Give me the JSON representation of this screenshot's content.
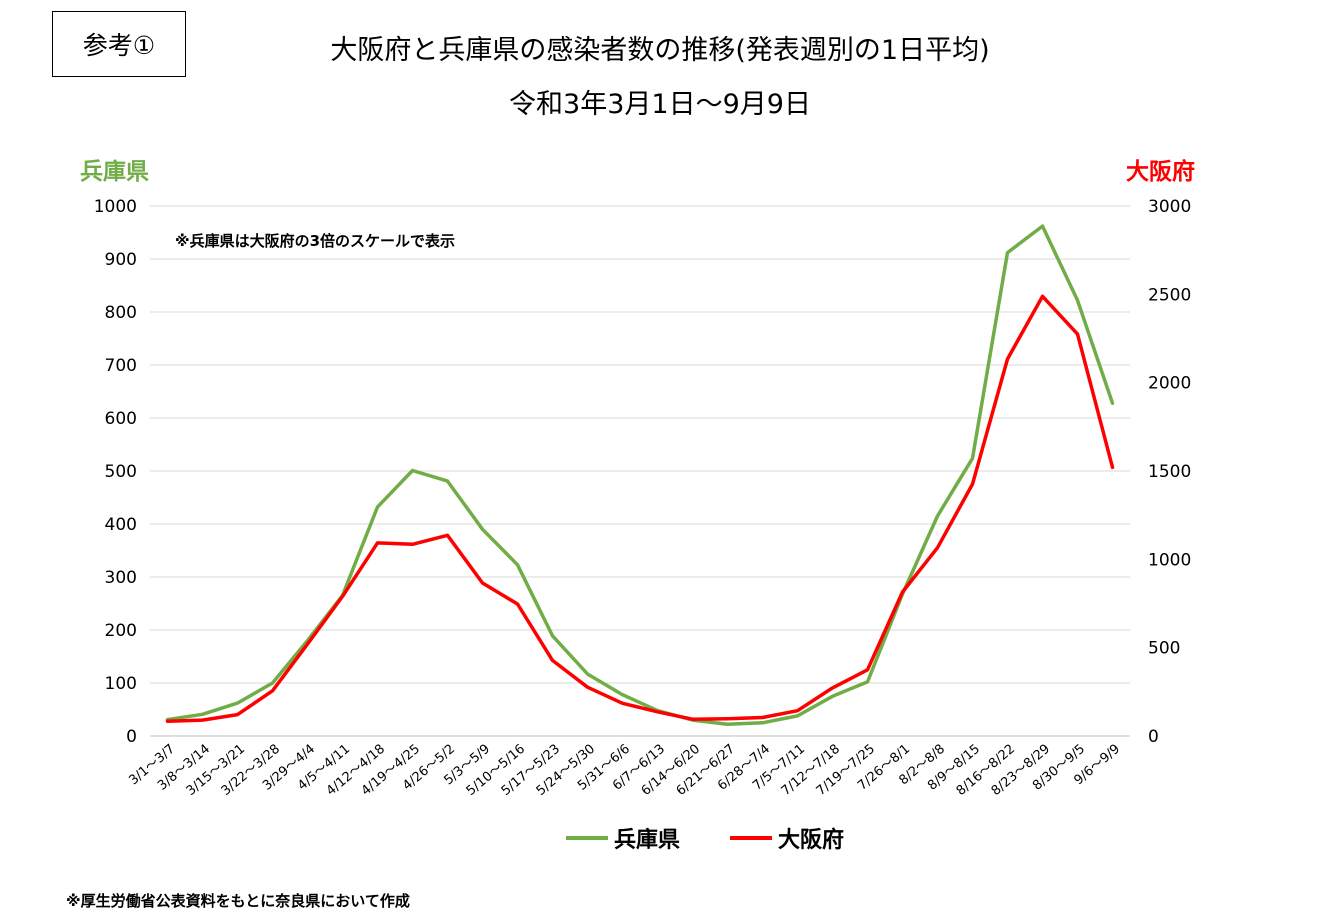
{
  "header": {
    "ref_label": "参考①",
    "title_line1": "大阪府と兵庫県の感染者数の推移(発表週別の1日平均)",
    "title_line2": "令和3年3月1日～9月9日"
  },
  "note": "※兵庫県は大阪府の3倍のスケールで表示",
  "source": "※厚生労働省公表資料をもとに奈良県において作成",
  "colors": {
    "hyogo": "#70ad47",
    "osaka": "#ff0000",
    "grid": "#d9d9d9"
  },
  "chart_data": {
    "type": "line",
    "left_axis_title": "兵庫県",
    "right_axis_title": "大阪府",
    "ylim_left": [
      0,
      1000
    ],
    "ylim_right": [
      0,
      3000
    ],
    "yticks_left": [
      "0",
      "100",
      "200",
      "300",
      "400",
      "500",
      "600",
      "700",
      "800",
      "900",
      "1000"
    ],
    "yticks_right": [
      "0",
      "500",
      "1000",
      "1500",
      "2000",
      "2500",
      "3000"
    ],
    "grid": true,
    "legend_position": "bottom",
    "categories": [
      "3/1～3/7",
      "3/8～3/14",
      "3/15～3/21",
      "3/22～3/28",
      "3/29～4/4",
      "4/5～4/11",
      "4/12～4/18",
      "4/19～4/25",
      "4/26～5/2",
      "5/3～5/9",
      "5/10～5/16",
      "5/17～5/23",
      "5/24～5/30",
      "5/31～6/6",
      "6/7～6/13",
      "6/14～6/20",
      "6/21～6/27",
      "6/28～7/4",
      "7/5～7/11",
      "7/12～7/18",
      "7/19～7/25",
      "7/26～8/1",
      "8/2～8/8",
      "8/9～8/15",
      "8/16～8/22",
      "8/23～8/29",
      "8/30～9/5",
      "9/6～9/9"
    ],
    "series": [
      {
        "name": "兵庫県",
        "axis": "left",
        "values": [
          31,
          41,
          62,
          100,
          180,
          265,
          432,
          501,
          481,
          390,
          323,
          189,
          117,
          78,
          48,
          30,
          22,
          25,
          38,
          75,
          102,
          268,
          415,
          524,
          912,
          962,
          822,
          628
        ]
      },
      {
        "name": "大阪府",
        "axis": "right",
        "values": [
          84,
          90,
          121,
          256,
          520,
          790,
          1093,
          1085,
          1136,
          866,
          747,
          428,
          276,
          185,
          137,
          95,
          98,
          105,
          143,
          272,
          375,
          815,
          1066,
          1426,
          2134,
          2489,
          2275,
          1521
        ]
      }
    ]
  }
}
